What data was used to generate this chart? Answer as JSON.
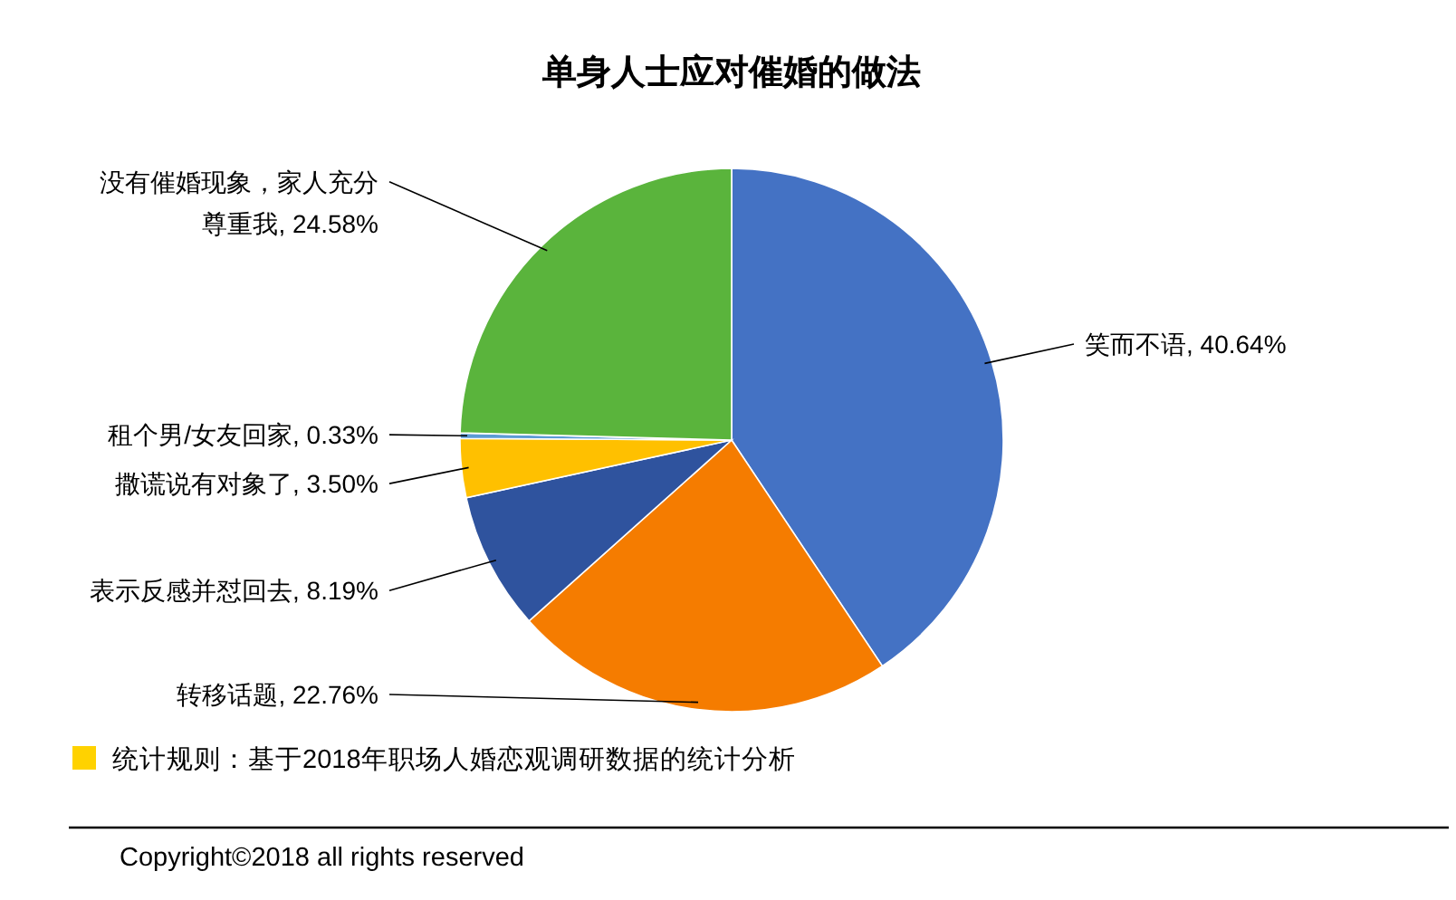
{
  "chart_data": {
    "type": "pie",
    "title": "单身人士应对催婚的做法",
    "categories": [
      "笑而不语",
      "转移话题",
      "表示反感并怼回去",
      "撒谎说有对象了",
      "租个男/女友回家",
      "没有催婚现象，家人充分尊重我"
    ],
    "values": [
      40.64,
      22.76,
      8.19,
      3.5,
      0.33,
      24.58
    ],
    "value_labels": [
      "40.64%",
      "22.76%",
      "8.19%",
      "3.50%",
      "0.33%",
      "24.58%"
    ],
    "colors": [
      "#4472c4",
      "#f57c00",
      "#2f539e",
      "#ffc000",
      "#5b9bd5",
      "#5ab43c"
    ],
    "annotations": [
      "统计规则：基于2018年职场人婚恋观调研数据的统计分析",
      "Copyright©2018 all rights reserved"
    ]
  }
}
